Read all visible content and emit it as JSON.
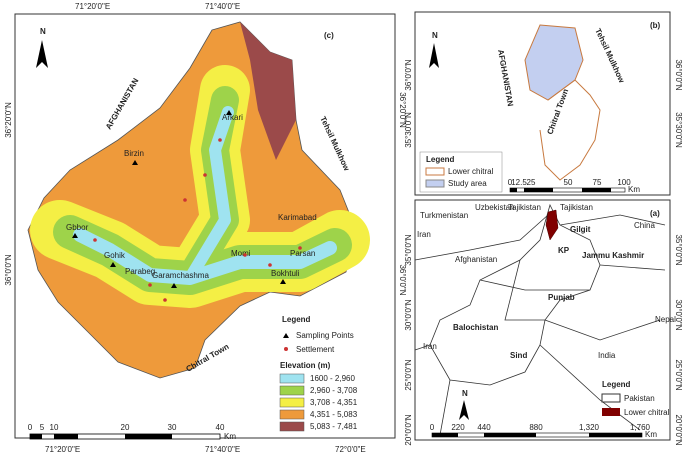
{
  "panel_c": {
    "label": "(c)",
    "north": "N",
    "top_lon": [
      "71°20'0\"E",
      "71°40'0\"E"
    ],
    "bottom_lon": [
      "71°20'0\"E",
      "71°40'0\"E",
      "72°0'0\"E"
    ],
    "left_lat": [
      "36°20'0\"N",
      "36°0'0\"N"
    ],
    "right_lat": [
      "36°20'0\"N",
      "36°0'0\"N"
    ],
    "regions": {
      "afghanistan": "AFGHANISTAN",
      "mulkhow": "Tehsil Mulkhow",
      "chitral": "Chitral Town"
    },
    "places": [
      "Arkari",
      "Birzin",
      "Gbbor",
      "Gohik",
      "Parabeg",
      "Garamchashma",
      "Momi",
      "Karimabad",
      "Parsan",
      "Bokhtuli"
    ],
    "legend": {
      "title": "Legend",
      "sampling": "Sampling Points",
      "settlement": "Settlement",
      "elevation_title": "Elevation (m)",
      "classes": [
        {
          "label": "1600 - 2,960",
          "color": "#9fe3f0"
        },
        {
          "label": "2,960 - 3,708",
          "color": "#9ed34a"
        },
        {
          "label": "3,708 - 4,351",
          "color": "#f4ef45"
        },
        {
          "label": "4,351 - 5,083",
          "color": "#ee9a3b"
        },
        {
          "label": "5,083 - 7,481",
          "color": "#9b4a4a"
        }
      ]
    },
    "scale": {
      "ticks": [
        "0",
        "5",
        "10",
        "20",
        "30",
        "40"
      ],
      "unit": "Km"
    }
  },
  "panel_b": {
    "label": "(b)",
    "north": "N",
    "regions": {
      "afghanistan": "AFGHANISTAN",
      "mulkhow": "Tehsil Mulkhow",
      "chitral": "Chitral Town"
    },
    "left_lat": [
      "36°0'0\"N",
      "35°30'0\"N"
    ],
    "right_lat": [
      "36°0'0\"N",
      "35°30'0\"N"
    ],
    "legend": {
      "title": "Legend",
      "lower": "Lower chitral",
      "study": "Study area"
    },
    "scale": {
      "ticks": [
        "0",
        "12.5",
        "25",
        "50",
        "75",
        "100"
      ],
      "unit": "Km"
    }
  },
  "panel_a": {
    "label": "(a)",
    "north": "N",
    "places": [
      "Turkmenistan",
      "Uzbekistan",
      "Tajikistan",
      "Tajikistan",
      "Iran",
      "Gilgit",
      "China",
      "KP",
      "Afghanistan",
      "Jammu Kashmir",
      "Punjab",
      "Balochistan",
      "Nepal",
      "Iran",
      "Sind",
      "India"
    ],
    "left_lat": [
      "35°0'0\"N",
      "30°0'0\"N",
      "25°0'0\"N",
      "20°0'0\"N"
    ],
    "right_lat": [
      "35°0'0\"N",
      "30°0'0\"N",
      "25°0'0\"N",
      "20°0'0\"N"
    ],
    "legend": {
      "title": "Legend",
      "pakistan": "Pakistan",
      "lower": "Lower chitral"
    },
    "scale": {
      "ticks": [
        "0",
        "220",
        "440",
        "880",
        "1,320",
        "1,760"
      ],
      "unit": "Km"
    }
  }
}
